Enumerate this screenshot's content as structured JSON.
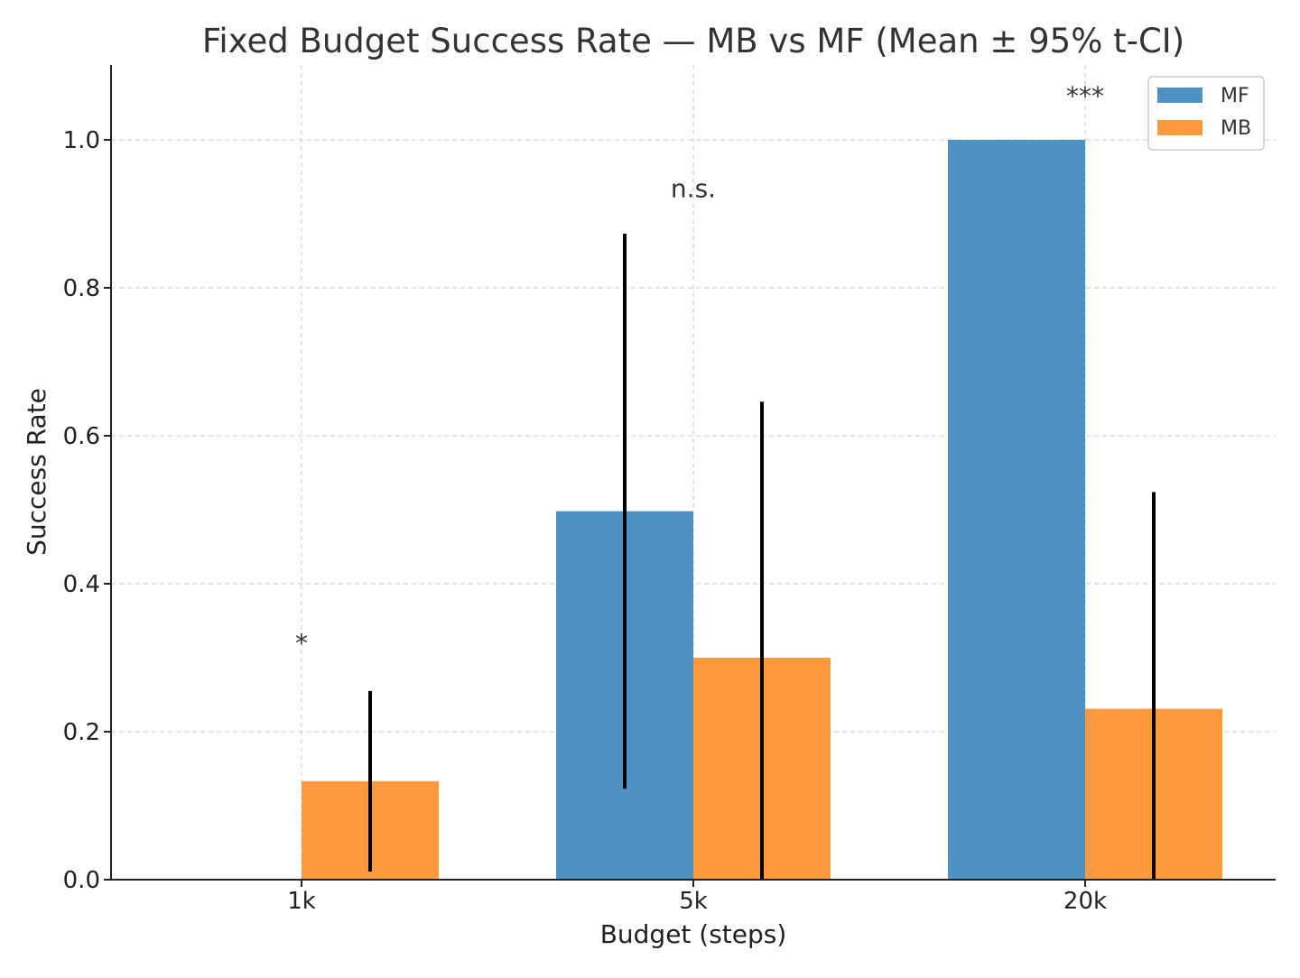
{
  "chart_data": {
    "type": "bar",
    "title": "Fixed Budget Success Rate — MB vs MF (Mean ± 95% t-CI)",
    "xlabel": "Budget (steps)",
    "ylabel": "Success Rate",
    "categories": [
      "1k",
      "5k",
      "20k"
    ],
    "ylim": [
      0,
      1.1
    ],
    "yticks": [
      0.0,
      0.2,
      0.4,
      0.6,
      0.8,
      1.0
    ],
    "ytick_labels": [
      "0.0",
      "0.2",
      "0.4",
      "0.6",
      "0.8",
      "1.0"
    ],
    "grid": true,
    "legend_position": "top-right",
    "series": [
      {
        "name": "MF",
        "color": "#4C92C3",
        "values": [
          0.0,
          0.498,
          1.0
        ],
        "ci_low": [
          0.0,
          0.123,
          1.0
        ],
        "ci_high": [
          0.0,
          0.873,
          1.0
        ]
      },
      {
        "name": "MB",
        "color": "#FF993E",
        "values": [
          0.133,
          0.3,
          0.231
        ],
        "ci_low": [
          0.011,
          0.0,
          0.0
        ],
        "ci_high": [
          0.255,
          0.646,
          0.524
        ]
      }
    ],
    "annotations": [
      {
        "category": "1k",
        "text": "*",
        "y": 0.32
      },
      {
        "category": "5k",
        "text": "n.s.",
        "y": 0.935
      },
      {
        "category": "20k",
        "text": "***",
        "y": 1.06
      }
    ]
  }
}
